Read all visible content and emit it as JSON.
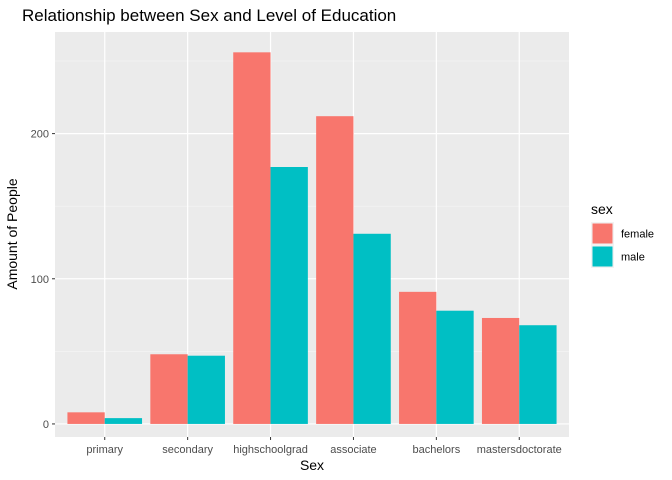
{
  "chart_data": {
    "type": "bar",
    "title": "Relationship between Sex and Level of Education",
    "xlabel": "Sex",
    "ylabel": "Amount of People",
    "categories": [
      "primary",
      "secondary",
      "highschoolgrad",
      "associate",
      "bachelors",
      "mastersdoctorate"
    ],
    "series": [
      {
        "name": "female",
        "color": "#F8766D",
        "values": [
          8,
          48,
          256,
          212,
          91,
          73
        ]
      },
      {
        "name": "male",
        "color": "#00BFC4",
        "values": [
          4,
          47,
          177,
          131,
          78,
          68
        ]
      }
    ],
    "ylim": [
      -9,
      270
    ],
    "yticks": [
      0,
      100,
      200
    ],
    "ytick_labels": [
      "0",
      "100",
      "200"
    ],
    "grid": true,
    "legend": {
      "title": "sex",
      "position": "right"
    }
  }
}
